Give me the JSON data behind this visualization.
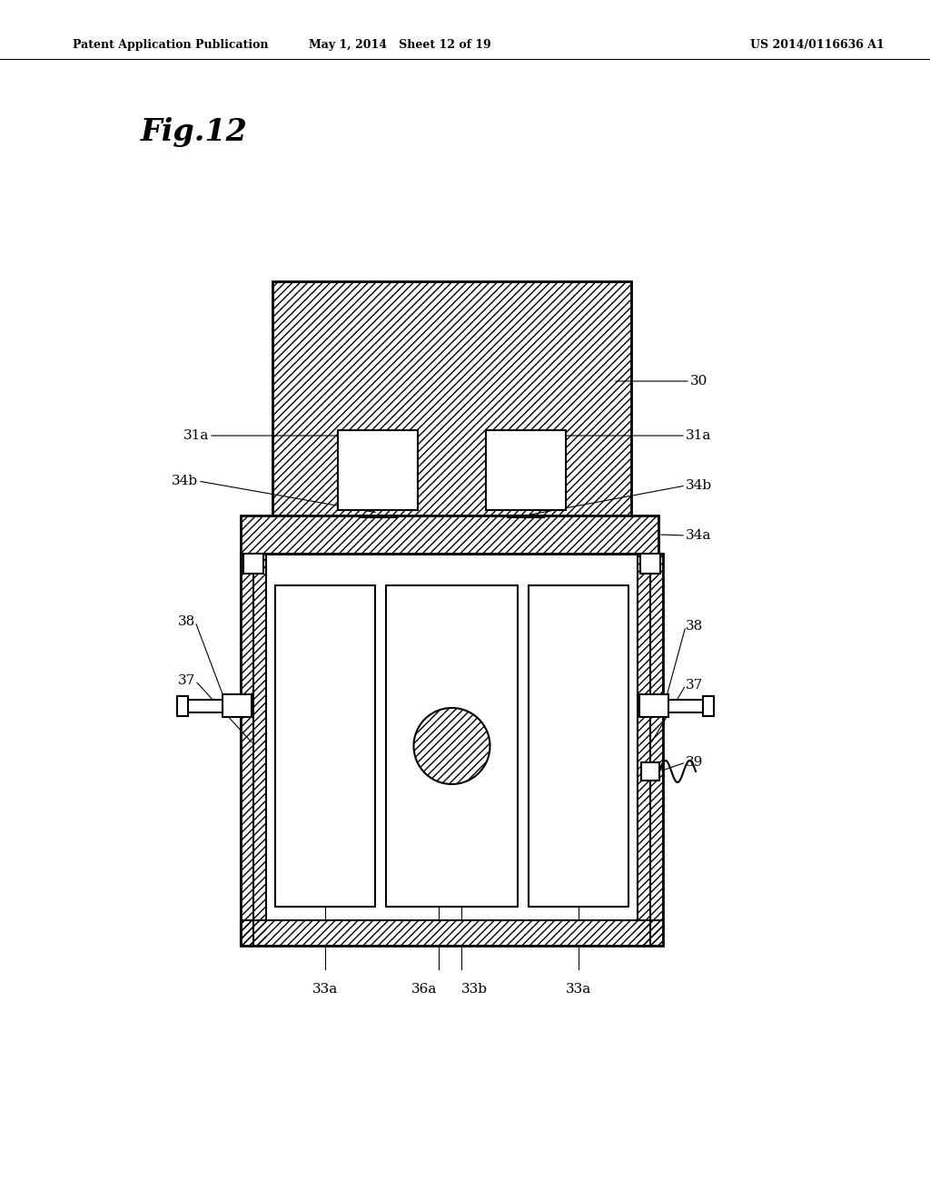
{
  "title_left": "Patent Application Publication",
  "title_mid": "May 1, 2014   Sheet 12 of 19",
  "title_right": "US 2014/0116636 A1",
  "fig_label": "Fig.12",
  "bg_color": "#ffffff",
  "line_color": "#000000"
}
